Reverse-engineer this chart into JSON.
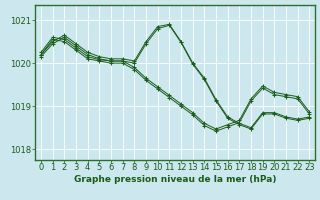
{
  "title": "Graphe pression niveau de la mer (hPa)",
  "background_color": "#cce8ee",
  "grid_color": "#ffffff",
  "line_color": "#1a5c1a",
  "frame_color": "#2d6e2d",
  "xlim": [
    -0.5,
    23.5
  ],
  "ylim": [
    1017.75,
    1021.35
  ],
  "yticks": [
    1018,
    1019,
    1020,
    1021
  ],
  "ytick_labels": [
    "1018",
    "1019",
    "1020",
    "1021"
  ],
  "xticks": [
    0,
    1,
    2,
    3,
    4,
    5,
    6,
    7,
    8,
    9,
    10,
    11,
    12,
    13,
    14,
    15,
    16,
    17,
    18,
    19,
    20,
    21,
    22,
    23
  ],
  "series": [
    [
      1020.2,
      1020.5,
      1020.65,
      1020.45,
      1020.25,
      1020.15,
      1020.1,
      1020.1,
      1020.05,
      1020.5,
      1020.85,
      1020.9,
      1020.5,
      1020.0,
      1019.65,
      1019.15,
      1018.75,
      1018.6,
      1018.5,
      1018.85,
      1018.85,
      1018.75,
      1018.7,
      1018.75
    ],
    [
      1020.15,
      1020.45,
      1020.6,
      1020.4,
      1020.2,
      1020.1,
      1020.05,
      1020.05,
      1020.0,
      1020.45,
      1020.8,
      1020.88,
      1020.48,
      1019.98,
      1019.62,
      1019.12,
      1018.72,
      1018.57,
      1018.47,
      1018.82,
      1018.82,
      1018.72,
      1018.67,
      1018.72
    ],
    [
      1020.2,
      1020.55,
      1020.5,
      1020.3,
      1020.1,
      1020.05,
      1020.0,
      1020.0,
      1019.85,
      1019.6,
      1019.4,
      1019.2,
      1019.0,
      1018.8,
      1018.55,
      1018.42,
      1018.52,
      1018.62,
      1019.12,
      1019.42,
      1019.27,
      1019.22,
      1019.17,
      1018.82
    ],
    [
      1020.25,
      1020.6,
      1020.55,
      1020.35,
      1020.15,
      1020.08,
      1020.05,
      1020.05,
      1019.9,
      1019.65,
      1019.45,
      1019.25,
      1019.05,
      1018.85,
      1018.6,
      1018.47,
      1018.57,
      1018.67,
      1019.17,
      1019.47,
      1019.32,
      1019.27,
      1019.22,
      1018.87
    ]
  ],
  "tick_fontsize": 6,
  "xlabel_fontsize": 6.5,
  "tick_color": "#1a5c1a"
}
